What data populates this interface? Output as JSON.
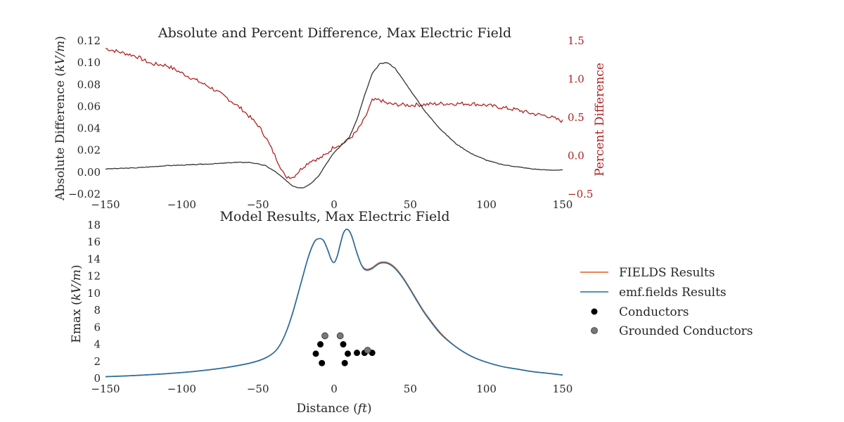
{
  "chart_data": [
    {
      "type": "line",
      "title": "Absolute and Percent Difference, Max Electric Field",
      "ylabel": "Absolute Difference (kV/m)",
      "y2label": "Percent Difference",
      "xlim": [
        -150,
        150
      ],
      "ylim": [
        -0.02,
        0.12
      ],
      "y2lim": [
        -0.5,
        1.5
      ],
      "xticks": [
        "−150",
        "−100",
        "−50",
        "0",
        "50",
        "100",
        "150"
      ],
      "yticks": [
        "−0.02",
        "0.00",
        "0.02",
        "0.04",
        "0.06",
        "0.08",
        "0.10",
        "0.12"
      ],
      "y2ticks": [
        "−0.5",
        "0.0",
        "0.5",
        "1.0",
        "1.5"
      ],
      "colors": {
        "absolute": "#333333",
        "percent": "#b22222"
      },
      "grid": false,
      "series": [
        {
          "axis": "left",
          "x": [
            -150,
            -130,
            -110,
            -90,
            -75,
            -65,
            -55,
            -45,
            -38,
            -32,
            -28,
            -24,
            -20,
            -15,
            -10,
            -5,
            0,
            5,
            10,
            15,
            20,
            25,
            30,
            35,
            40,
            50,
            60,
            70,
            80,
            90,
            100,
            110,
            120,
            130,
            140,
            150
          ],
          "values": [
            0.003,
            0.004,
            0.006,
            0.007,
            0.008,
            0.009,
            0.009,
            0.006,
            0.0,
            -0.007,
            -0.012,
            -0.014,
            -0.014,
            -0.01,
            -0.003,
            0.008,
            0.018,
            0.025,
            0.032,
            0.048,
            0.07,
            0.09,
            0.099,
            0.1,
            0.095,
            0.075,
            0.055,
            0.039,
            0.026,
            0.017,
            0.011,
            0.007,
            0.005,
            0.003,
            0.002,
            0.002
          ]
        },
        {
          "axis": "right",
          "x": [
            -150,
            -140,
            -130,
            -120,
            -110,
            -100,
            -90,
            -80,
            -70,
            -60,
            -50,
            -45,
            -40,
            -35,
            -32,
            -30,
            -27,
            -24,
            -20,
            -15,
            -10,
            -5,
            0,
            5,
            10,
            15,
            20,
            25,
            30,
            35,
            40,
            50,
            60,
            70,
            80,
            90,
            100,
            110,
            120,
            130,
            140,
            150
          ],
          "values": [
            1.4,
            1.35,
            1.3,
            1.2,
            1.18,
            1.08,
            0.98,
            0.88,
            0.75,
            0.6,
            0.4,
            0.25,
            0.05,
            -0.15,
            -0.28,
            -0.27,
            -0.28,
            -0.22,
            -0.14,
            -0.06,
            -0.04,
            0.02,
            0.12,
            0.15,
            0.22,
            0.32,
            0.48,
            0.72,
            0.73,
            0.68,
            0.67,
            0.66,
            0.67,
            0.68,
            0.68,
            0.68,
            0.66,
            0.63,
            0.6,
            0.55,
            0.52,
            0.45
          ]
        }
      ]
    },
    {
      "type": "line",
      "title": "Model Results, Max Electric Field",
      "xlabel": "Distance (ft)",
      "ylabel": "Emax (kV/m)",
      "xlim": [
        -150,
        150
      ],
      "ylim": [
        0,
        18
      ],
      "xticks": [
        "−150",
        "−100",
        "−50",
        "0",
        "50",
        "100",
        "150"
      ],
      "yticks": [
        "0",
        "2",
        "4",
        "6",
        "8",
        "10",
        "12",
        "14",
        "16",
        "18"
      ],
      "grid": false,
      "legend_position": "right",
      "legend": [
        "FIELDS Results",
        "emf.fields Results",
        "Conductors",
        "Grounded Conductors"
      ],
      "series": [
        {
          "name": "FIELDS Results",
          "color": "#e15c1e",
          "x": [
            -150,
            -130,
            -110,
            -90,
            -70,
            -55,
            -45,
            -38,
            -33,
            -28,
            -22,
            -17,
            -13,
            -10,
            -7,
            -4,
            -2,
            0,
            2,
            4,
            6,
            8,
            10,
            12,
            14,
            16,
            18,
            20,
            22,
            25,
            30,
            35,
            40,
            45,
            50,
            55,
            60,
            70,
            80,
            90,
            100,
            110,
            120,
            130,
            140,
            150
          ],
          "values": [
            0.2,
            0.35,
            0.55,
            0.85,
            1.3,
            1.8,
            2.4,
            3.3,
            4.8,
            7.2,
            11.0,
            14.2,
            16.0,
            16.4,
            16.2,
            15.0,
            14.0,
            13.6,
            14.3,
            15.7,
            17.0,
            17.5,
            17.3,
            16.5,
            15.3,
            14.2,
            13.3,
            12.9,
            12.8,
            13.0,
            13.6,
            13.6,
            13.0,
            11.9,
            10.5,
            9.0,
            7.6,
            5.3,
            3.7,
            2.6,
            1.9,
            1.4,
            1.1,
            0.8,
            0.6,
            0.4
          ]
        },
        {
          "name": "emf.fields Results",
          "color": "#1f6fa4",
          "x": [
            -150,
            -130,
            -110,
            -90,
            -70,
            -55,
            -45,
            -38,
            -33,
            -28,
            -22,
            -17,
            -13,
            -10,
            -7,
            -4,
            -2,
            0,
            2,
            4,
            6,
            8,
            10,
            12,
            14,
            16,
            18,
            20,
            22,
            25,
            30,
            35,
            40,
            45,
            50,
            55,
            60,
            70,
            80,
            90,
            100,
            110,
            120,
            130,
            140,
            150
          ],
          "values": [
            0.2,
            0.35,
            0.55,
            0.85,
            1.3,
            1.8,
            2.4,
            3.3,
            4.8,
            7.2,
            11.0,
            14.2,
            16.0,
            16.4,
            16.2,
            15.0,
            14.0,
            13.6,
            14.3,
            15.7,
            17.0,
            17.5,
            17.3,
            16.5,
            15.3,
            14.2,
            13.3,
            12.8,
            12.7,
            12.9,
            13.5,
            13.5,
            12.9,
            11.8,
            10.4,
            8.9,
            7.5,
            5.2,
            3.7,
            2.6,
            1.9,
            1.4,
            1.1,
            0.8,
            0.6,
            0.4
          ]
        },
        {
          "name": "Conductors",
          "type": "scatter",
          "color": "#000000",
          "x": [
            -12,
            -9,
            -8,
            6,
            7,
            9,
            15,
            20,
            25
          ],
          "values": [
            2.9,
            4.0,
            1.8,
            4.0,
            1.8,
            2.9,
            3.0,
            3.0,
            3.0
          ]
        },
        {
          "name": "Grounded Conductors",
          "type": "scatter",
          "color": "#777777",
          "x": [
            -6,
            4,
            22
          ],
          "values": [
            5.0,
            5.0,
            3.3
          ]
        }
      ]
    }
  ]
}
